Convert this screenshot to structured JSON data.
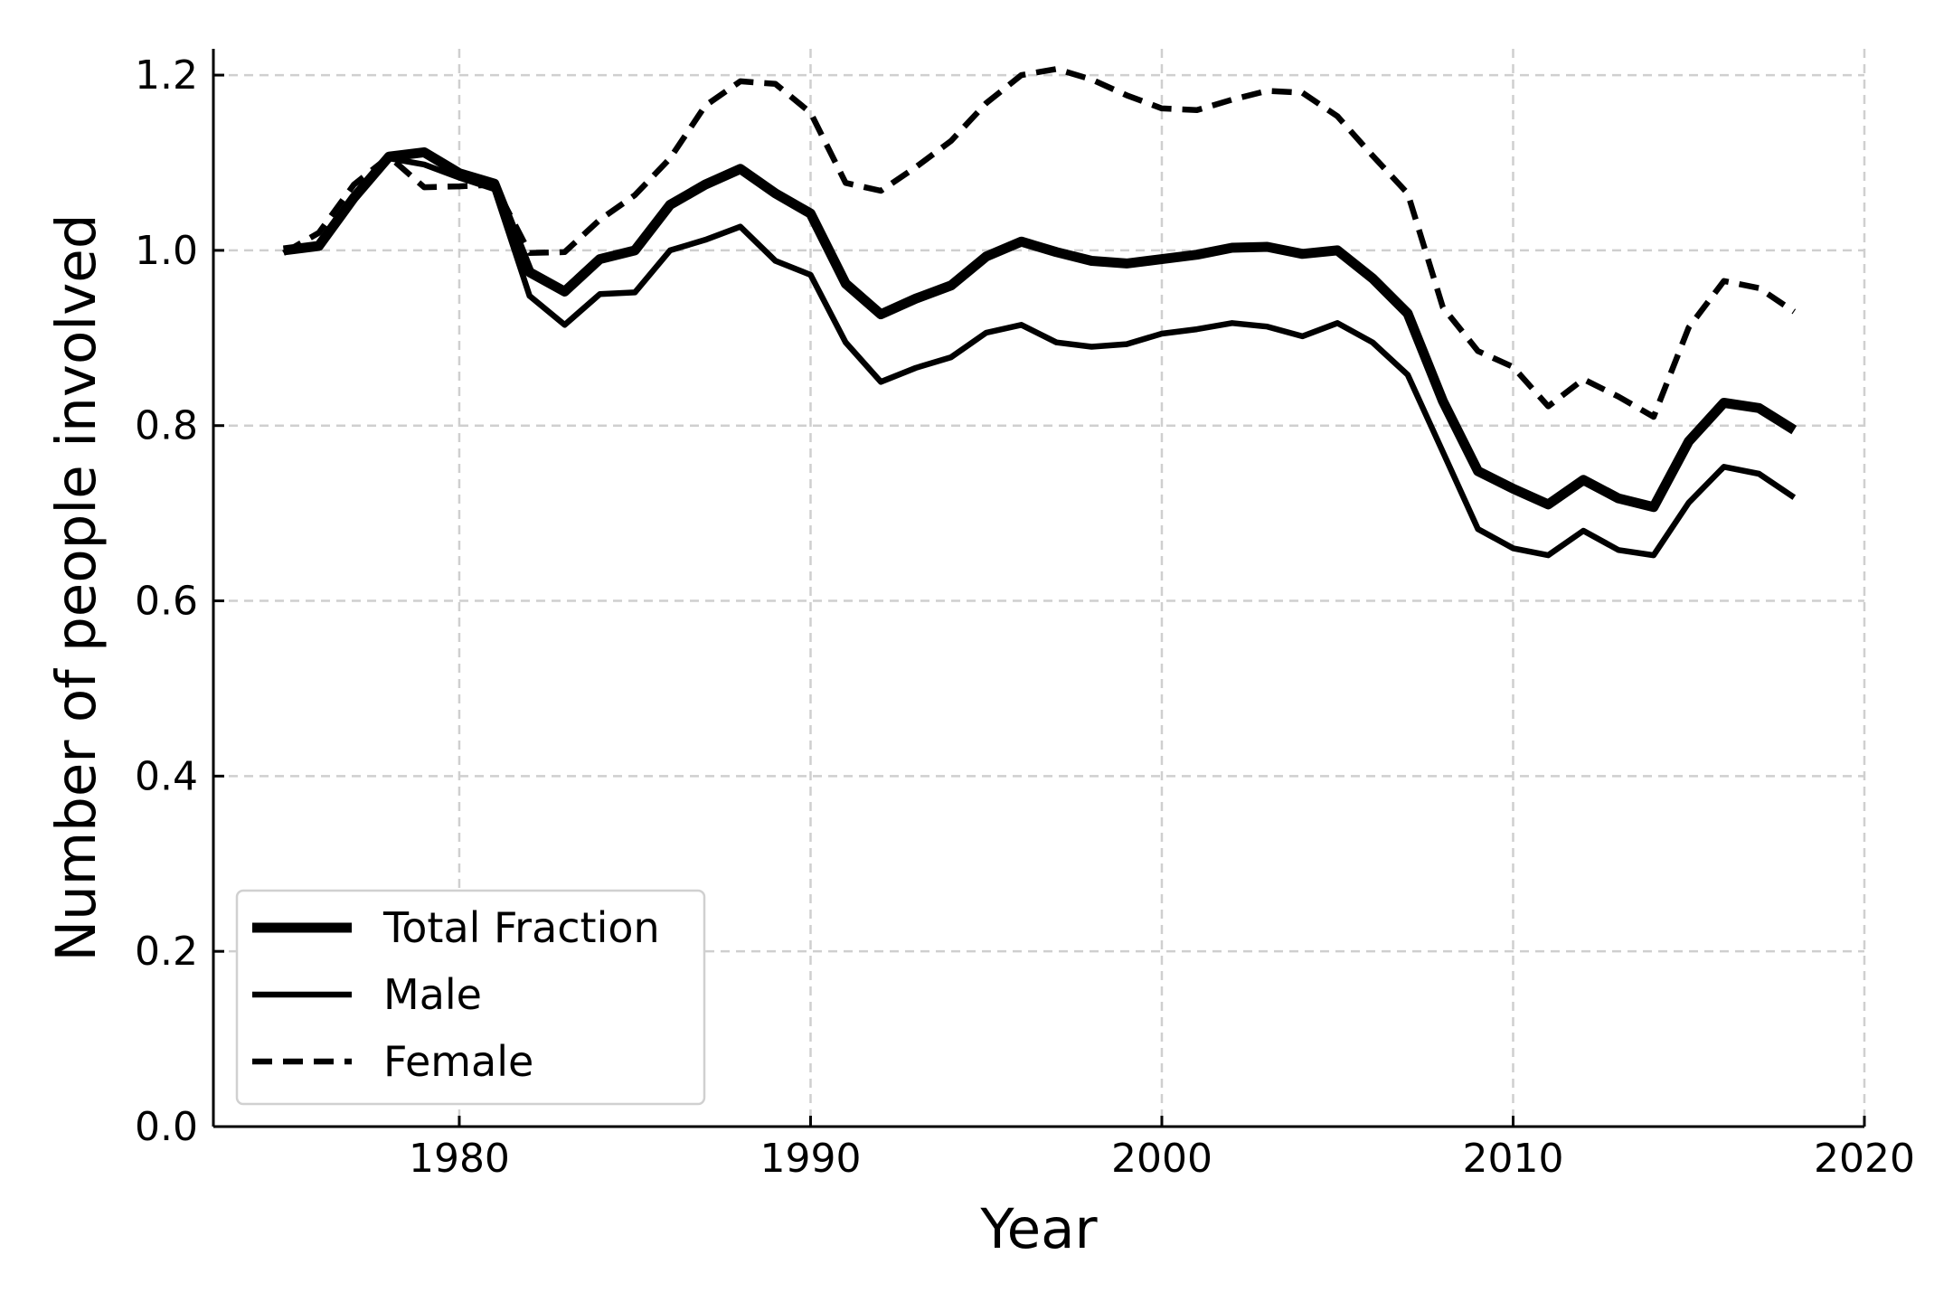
{
  "chart_data": {
    "type": "line",
    "title": "",
    "xlabel": "Year",
    "ylabel": "Number of people involved",
    "xlim": [
      1973,
      2020
    ],
    "ylim": [
      0,
      1.23
    ],
    "xticks": [
      1980,
      1990,
      2000,
      2010,
      2020
    ],
    "yticks": [
      0.0,
      0.2,
      0.4,
      0.6,
      0.8,
      1.0,
      1.2
    ],
    "xtick_labels": [
      "1980",
      "1990",
      "2000",
      "2010",
      "2020"
    ],
    "ytick_labels": [
      "0.0",
      "0.2",
      "0.4",
      "0.6",
      "0.8",
      "1.0",
      "1.2"
    ],
    "grid": true,
    "legend_position": "lower-left",
    "x": [
      1975,
      1976,
      1977,
      1978,
      1979,
      1980,
      1981,
      1982,
      1983,
      1984,
      1985,
      1986,
      1987,
      1988,
      1989,
      1990,
      1991,
      1992,
      1993,
      1994,
      1995,
      1996,
      1997,
      1998,
      1999,
      2000,
      2001,
      2002,
      2003,
      2004,
      2005,
      2006,
      2007,
      2008,
      2009,
      2010,
      2011,
      2012,
      2013,
      2014,
      2015,
      2016,
      2017,
      2018
    ],
    "series": [
      {
        "name": "Total Fraction",
        "style": "thick-solid",
        "values": [
          1.0,
          1.005,
          1.06,
          1.107,
          1.112,
          1.088,
          1.076,
          0.975,
          0.953,
          0.99,
          1.0,
          1.052,
          1.075,
          1.093,
          1.065,
          1.042,
          0.962,
          0.927,
          0.945,
          0.96,
          0.993,
          1.01,
          0.998,
          0.988,
          0.985,
          0.99,
          0.995,
          1.003,
          1.004,
          0.996,
          1.0,
          0.968,
          0.928,
          0.828,
          0.748,
          0.728,
          0.71,
          0.738,
          0.717,
          0.707,
          0.782,
          0.826,
          0.82,
          0.795
        ]
      },
      {
        "name": "Male",
        "style": "solid",
        "values": [
          1.0,
          1.005,
          1.06,
          1.105,
          1.098,
          1.083,
          1.07,
          0.948,
          0.915,
          0.95,
          0.952,
          1.0,
          1.012,
          1.027,
          0.988,
          0.972,
          0.895,
          0.85,
          0.866,
          0.878,
          0.906,
          0.915,
          0.895,
          0.89,
          0.893,
          0.905,
          0.91,
          0.917,
          0.913,
          0.902,
          0.917,
          0.895,
          0.858,
          0.77,
          0.682,
          0.66,
          0.652,
          0.68,
          0.658,
          0.652,
          0.712,
          0.753,
          0.745,
          0.718
        ]
      },
      {
        "name": "Female",
        "style": "dashed",
        "values": [
          0.997,
          1.02,
          1.075,
          1.107,
          1.072,
          1.073,
          1.075,
          0.997,
          0.998,
          1.035,
          1.063,
          1.105,
          1.165,
          1.193,
          1.19,
          1.157,
          1.077,
          1.068,
          1.095,
          1.125,
          1.168,
          1.2,
          1.207,
          1.195,
          1.177,
          1.162,
          1.16,
          1.172,
          1.182,
          1.18,
          1.153,
          1.108,
          1.065,
          0.935,
          0.885,
          0.867,
          0.822,
          0.853,
          0.833,
          0.81,
          0.912,
          0.965,
          0.957,
          0.93
        ]
      }
    ]
  }
}
